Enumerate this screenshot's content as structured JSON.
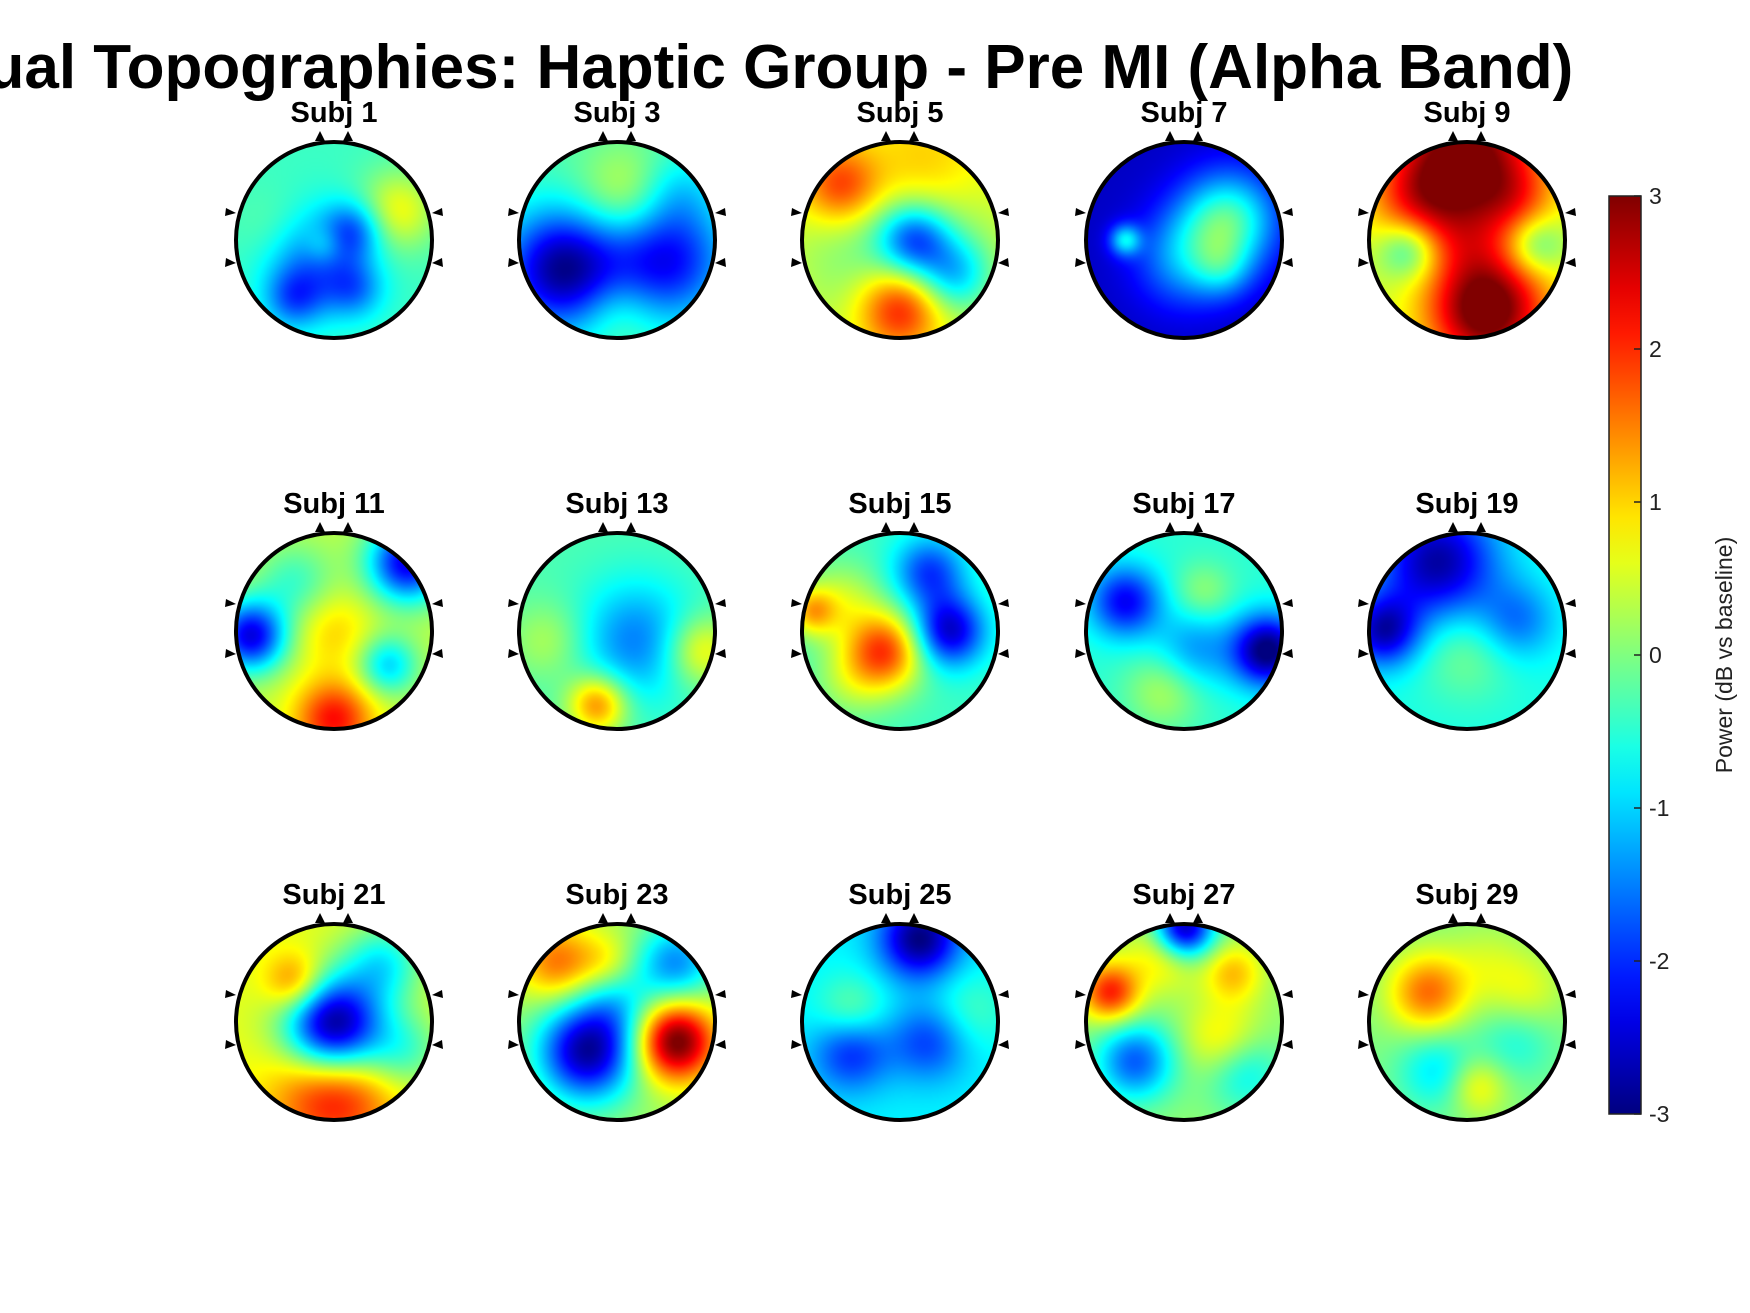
{
  "figure": {
    "title": "Individual Topographies: Haptic Group - Pre MI (Alpha Band)"
  },
  "chart_data": {
    "type": "heatmap",
    "title": "Individual Topographies: Haptic Group - Pre MI (Alpha Band)",
    "colormap": "jet",
    "clim": [
      -3,
      3
    ],
    "colorbar": {
      "label": "Power (dB vs baseline)",
      "ticks": [
        3,
        2,
        1,
        0,
        -1,
        -2,
        -3
      ],
      "tick_labels": [
        "3",
        "2",
        "1",
        "0",
        "-1",
        "-2",
        "-3"
      ],
      "placement": "right"
    },
    "grid_layout": {
      "rows": 3,
      "cols": 5
    },
    "subjects": [
      {
        "title": "Subj 1",
        "base": -0.4,
        "blobs": [
          [
            0.65,
            -0.3,
            1.1,
            0.2
          ],
          [
            -0.2,
            0.2,
            -1.2,
            0.25
          ],
          [
            0.2,
            -0.1,
            -1.2,
            0.15
          ],
          [
            -0.4,
            0.6,
            -1.1,
            0.15
          ],
          [
            0.2,
            0.5,
            -1.0,
            0.15
          ],
          [
            -0.1,
            0.05,
            0.6,
            0.1
          ],
          [
            -0.6,
            -0.1,
            0.3,
            0.2
          ]
        ]
      },
      {
        "title": "Subj 3",
        "base": -0.3,
        "blobs": [
          [
            -0.55,
            0.3,
            -2.6,
            0.3
          ],
          [
            0.5,
            0.2,
            -2.0,
            0.3
          ],
          [
            0.1,
            -0.45,
            0.9,
            0.25
          ],
          [
            0.0,
            0.7,
            0.5,
            0.2
          ],
          [
            0.6,
            -0.5,
            -0.6,
            0.2
          ]
        ]
      },
      {
        "title": "Subj 5",
        "base": 0.9,
        "blobs": [
          [
            0.0,
            0.1,
            -1.2,
            0.6
          ],
          [
            0.0,
            0.7,
            2.0,
            0.22
          ],
          [
            0.15,
            0.0,
            -1.8,
            0.18
          ],
          [
            -0.6,
            -0.55,
            1.5,
            0.2
          ],
          [
            0.2,
            -0.65,
            0.8,
            0.3
          ],
          [
            0.55,
            0.35,
            -1.2,
            0.18
          ]
        ]
      },
      {
        "title": "Subj 7",
        "base": -2.6,
        "blobs": [
          [
            0.45,
            -0.2,
            2.2,
            0.25
          ],
          [
            -0.6,
            0.0,
            1.6,
            0.08
          ],
          [
            0.0,
            0.2,
            1.2,
            0.25
          ],
          [
            0.4,
            0.3,
            0.8,
            0.15
          ]
        ]
      },
      {
        "title": "Subj 9",
        "base": 0.4,
        "blobs": [
          [
            0.0,
            -0.85,
            2.8,
            0.35
          ],
          [
            0.2,
            0.7,
            3.0,
            0.3
          ],
          [
            -0.6,
            0.1,
            -1.2,
            0.15
          ],
          [
            0.7,
            0.05,
            -1.0,
            0.15
          ],
          [
            0.0,
            0.0,
            0.5,
            0.2
          ],
          [
            -0.5,
            -0.4,
            1.2,
            0.25
          ],
          [
            0.5,
            -0.4,
            0.8,
            0.2
          ]
        ]
      },
      {
        "title": "Subj 11",
        "base": 0.4,
        "blobs": [
          [
            0.75,
            -0.7,
            -2.8,
            0.2
          ],
          [
            -0.85,
            0.05,
            -2.8,
            0.18
          ],
          [
            0.55,
            0.35,
            -1.4,
            0.15
          ],
          [
            0.0,
            0.9,
            1.8,
            0.2
          ],
          [
            -0.4,
            -0.5,
            -0.8,
            0.2
          ],
          [
            0.0,
            0.0,
            0.6,
            0.2
          ]
        ]
      },
      {
        "title": "Subj 13",
        "base": -0.3,
        "blobs": [
          [
            0.2,
            0.1,
            -1.2,
            0.3
          ],
          [
            -0.2,
            0.75,
            1.8,
            0.15
          ],
          [
            0.85,
            0.2,
            1.2,
            0.18
          ],
          [
            -0.7,
            0.1,
            0.6,
            0.2
          ]
        ]
      },
      {
        "title": "Subj 15",
        "base": -0.4,
        "blobs": [
          [
            -0.15,
            0.2,
            2.2,
            0.2
          ],
          [
            0.5,
            0.0,
            -2.2,
            0.18
          ],
          [
            0.3,
            -0.6,
            -1.5,
            0.18
          ],
          [
            -0.6,
            -0.3,
            0.8,
            0.2
          ],
          [
            -0.5,
            0.5,
            0.6,
            0.2
          ],
          [
            -0.9,
            -0.2,
            1.3,
            0.12
          ]
        ]
      },
      {
        "title": "Subj 17",
        "base": -0.5,
        "blobs": [
          [
            -0.6,
            -0.3,
            -1.8,
            0.18
          ],
          [
            0.85,
            0.2,
            -2.6,
            0.18
          ],
          [
            0.2,
            -0.4,
            0.6,
            0.15
          ],
          [
            -0.2,
            0.6,
            0.8,
            0.2
          ],
          [
            0.1,
            0.2,
            -0.9,
            0.2
          ]
        ]
      },
      {
        "title": "Subj 19",
        "base": -0.6,
        "blobs": [
          [
            -0.3,
            -0.7,
            -2.2,
            0.3
          ],
          [
            0.0,
            0.2,
            0.6,
            0.25
          ],
          [
            -0.85,
            0.0,
            -2.0,
            0.18
          ],
          [
            0.5,
            -0.1,
            -1.0,
            0.2
          ]
        ]
      },
      {
        "title": "Subj 21",
        "base": 0.6,
        "blobs": [
          [
            0.0,
            0.05,
            -3.8,
            0.25
          ],
          [
            0.0,
            0.7,
            1.8,
            0.3
          ],
          [
            0.5,
            -0.6,
            -1.3,
            0.2
          ],
          [
            -0.4,
            -0.4,
            1.2,
            0.15
          ],
          [
            0.7,
            0.3,
            -1.0,
            0.2
          ]
        ]
      },
      {
        "title": "Subj 23",
        "base": 0.2,
        "blobs": [
          [
            -0.3,
            0.3,
            -3.0,
            0.25
          ],
          [
            0.6,
            0.2,
            3.0,
            0.2
          ],
          [
            -0.6,
            -0.6,
            1.4,
            0.2
          ],
          [
            0.6,
            -0.6,
            -1.6,
            0.2
          ],
          [
            0.0,
            -0.2,
            -0.8,
            0.2
          ],
          [
            -0.1,
            -0.6,
            0.6,
            0.15
          ]
        ]
      },
      {
        "title": "Subj 25",
        "base": -0.8,
        "blobs": [
          [
            -0.5,
            -0.1,
            0.8,
            0.18
          ],
          [
            0.2,
            -0.85,
            -2.2,
            0.2
          ],
          [
            -0.5,
            0.3,
            -1.3,
            0.2
          ],
          [
            0.3,
            0.2,
            -1.1,
            0.2
          ],
          [
            0.7,
            -0.1,
            0.5,
            0.2
          ]
        ]
      },
      {
        "title": "Subj 27",
        "base": 0.1,
        "blobs": [
          [
            0.0,
            -0.95,
            -3.0,
            0.15
          ],
          [
            -0.75,
            -0.3,
            2.0,
            0.15
          ],
          [
            -0.5,
            0.4,
            -1.8,
            0.2
          ],
          [
            0.4,
            0.2,
            0.9,
            0.2
          ],
          [
            0.5,
            -0.5,
            1.0,
            0.15
          ],
          [
            -0.2,
            -0.7,
            0.9,
            0.18
          ],
          [
            0.6,
            0.5,
            -1.0,
            0.2
          ]
        ]
      },
      {
        "title": "Subj 29",
        "base": 0.0,
        "blobs": [
          [
            -0.4,
            -0.3,
            1.6,
            0.2
          ],
          [
            0.1,
            0.65,
            0.9,
            0.15
          ],
          [
            -0.3,
            0.5,
            -0.9,
            0.2
          ],
          [
            0.6,
            -0.3,
            0.6,
            0.2
          ],
          [
            0.5,
            0.2,
            -0.6,
            0.2
          ],
          [
            0.2,
            -0.6,
            0.4,
            0.2
          ]
        ]
      }
    ]
  }
}
